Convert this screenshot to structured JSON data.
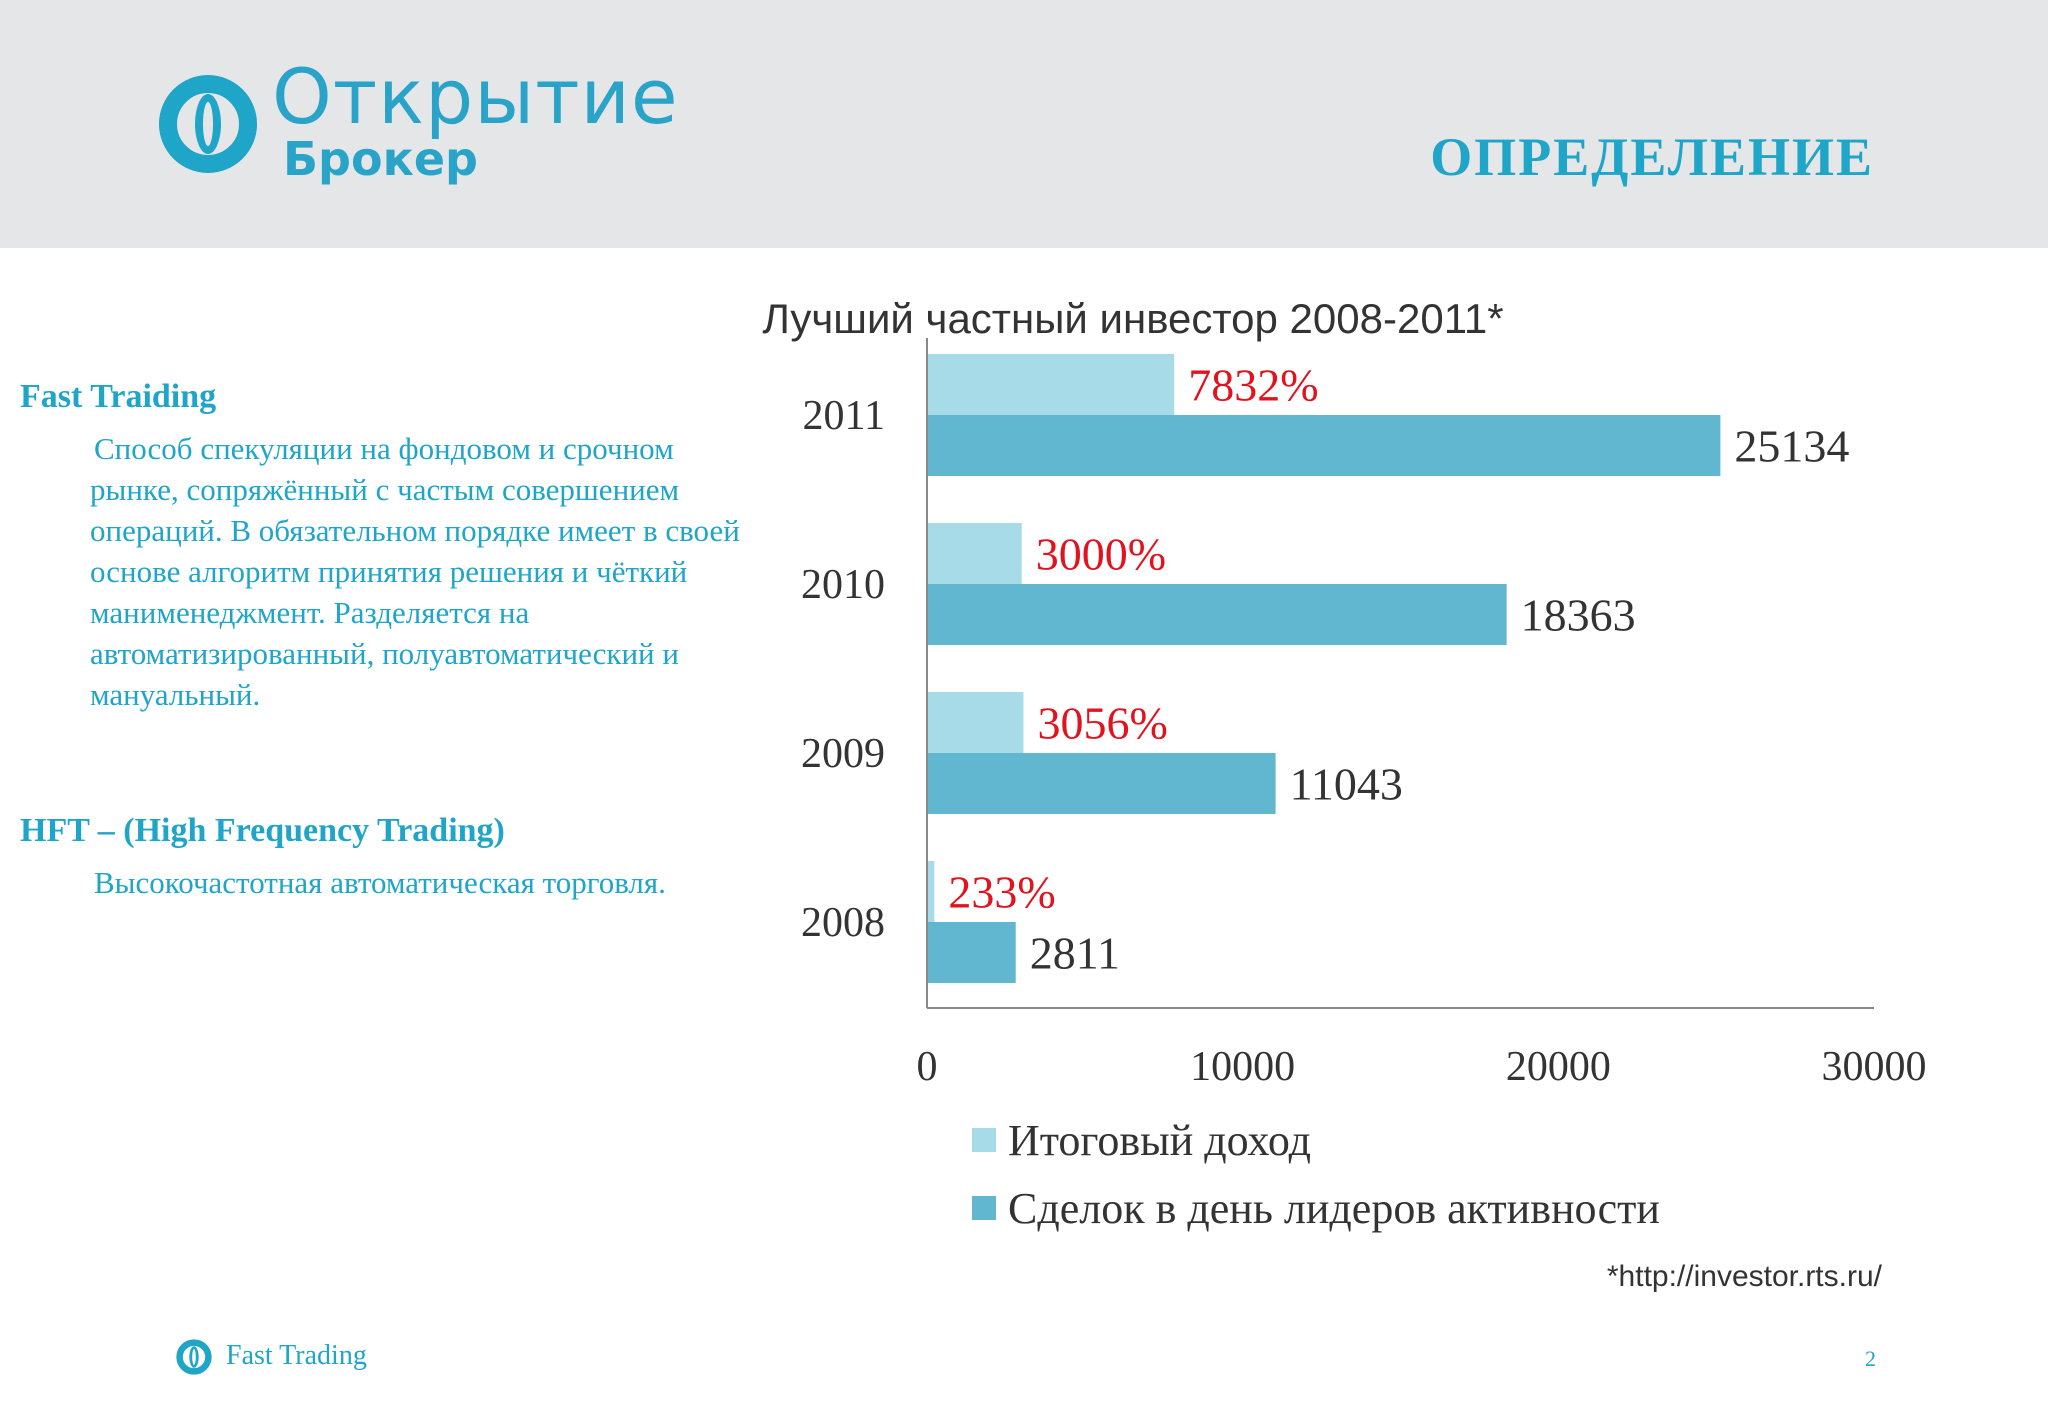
{
  "brand": {
    "name": "Открытие",
    "sub": "Брокер"
  },
  "slide": {
    "title": "ОПРЕДЕЛЕНИЕ",
    "footer_label": "Fast Trading",
    "page_number": "2"
  },
  "definitions": [
    {
      "term": "Fast Traiding",
      "text": "Способ спекуляции на фондовом и срочном рынке, сопряжённый с частым совершением операций. В обязательном порядке имеет в своей основе алгоритм принятия решения и чёткий манименеджмент.  Разделяется на автоматизированный, полуавтоматический и мануальный."
    },
    {
      "term": "HFT – (High Frequency Trading)",
      "text": "Высокочастотная автоматическая торговля."
    }
  ],
  "chart_data": {
    "type": "bar",
    "orientation": "horizontal",
    "title": "Лучший частный инвестор 2008-2011*",
    "categories": [
      "2011",
      "2010",
      "2009",
      "2008"
    ],
    "series": [
      {
        "name": "Итоговый доход",
        "color": "#a8dbe8",
        "values": [
          7832,
          3000,
          3056,
          233
        ],
        "labels": [
          "7832%",
          "3000%",
          "3056%",
          "233%"
        ],
        "label_color": "#e0131f"
      },
      {
        "name": "Сделок в день лидеров активности",
        "color": "#62b7d0",
        "values": [
          25134,
          18363,
          11043,
          2811
        ],
        "labels": [
          "25134",
          "18363",
          "11043",
          "2811"
        ],
        "label_color": "#333333"
      }
    ],
    "xlim": [
      0,
      30000
    ],
    "xticks": [
      "0",
      "10000",
      "20000",
      "30000"
    ],
    "legend": "bottom",
    "source_note": "*http://investor.rts.ru/"
  },
  "colors": {
    "accent": "#1ea5c8",
    "header_bg": "#e5e6e8"
  }
}
